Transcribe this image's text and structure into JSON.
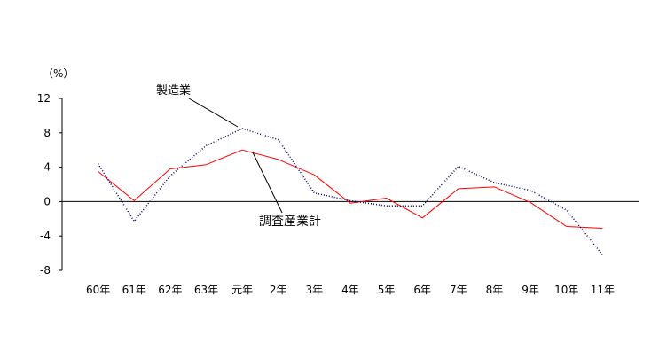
{
  "chart_data": {
    "type": "line",
    "categories": [
      "60年",
      "61年",
      "62年",
      "63年",
      "元年",
      "2年",
      "3年",
      "4年",
      "5年",
      "6年",
      "7年",
      "8年",
      "9年",
      "10年",
      "11年"
    ],
    "series": [
      {
        "name": "調査産業計",
        "values": [
          3.5,
          0.1,
          3.8,
          4.3,
          6.0,
          4.9,
          3.1,
          -0.2,
          0.4,
          -1.9,
          1.5,
          1.7,
          -0.1,
          -2.9,
          -3.1
        ],
        "color": "#ff0000",
        "dashed": false
      },
      {
        "name": "製造業",
        "values": [
          4.4,
          -2.3,
          3.0,
          6.5,
          8.5,
          7.2,
          1.0,
          0.1,
          -0.5,
          -0.5,
          4.1,
          2.2,
          1.3,
          -1.0,
          -6.2
        ],
        "color": "#000066",
        "dashed": true
      }
    ],
    "ylabel": "（%）",
    "xlabel": "",
    "ylim": [
      -8,
      12
    ],
    "yticks": [
      -8,
      -4,
      0,
      4,
      8,
      12
    ],
    "ytick_labels": [
      "-8",
      "-4",
      "0",
      "4",
      "8",
      "12"
    ],
    "grid": false
  }
}
